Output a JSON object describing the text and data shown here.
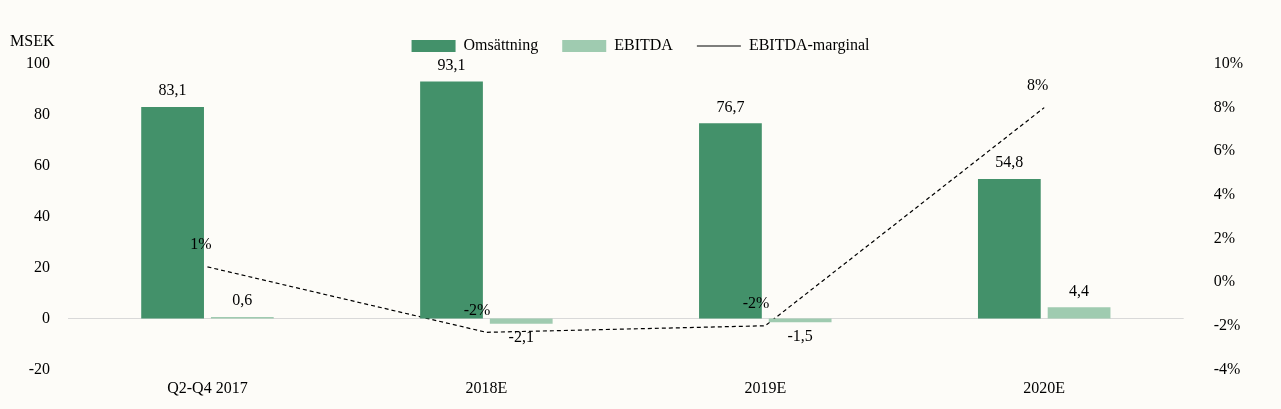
{
  "chart_data": {
    "type": "bar",
    "ylabel": "MSEK",
    "categories": [
      "Q2-Q4 2017",
      "2018E",
      "2019E",
      "2020E"
    ],
    "series": [
      {
        "name": "Omsättning",
        "color": "#43916a",
        "values": [
          83.1,
          93.1,
          76.7,
          54.8
        ],
        "value_labels": [
          "83,1",
          "93,1",
          "76,7",
          "54,8"
        ]
      },
      {
        "name": "EBITDA",
        "color": "#9fcbb0",
        "values": [
          0.6,
          -2.1,
          -1.5,
          4.4
        ],
        "value_labels": [
          "0,6",
          "-2,1",
          "-1,5",
          "4,4"
        ]
      },
      {
        "name": "EBITDA-marginal",
        "type": "line",
        "axis": "y2",
        "color": "#000000",
        "line_style": "dashed",
        "marker": "none",
        "values": [
          0.7,
          -2.3,
          -2.0,
          8.0
        ],
        "value_labels": [
          "1%",
          "-2%",
          "-2%",
          "8%"
        ]
      }
    ],
    "ylim": [
      -20,
      100
    ],
    "yticks": [
      -20,
      0,
      20,
      40,
      60,
      80,
      100
    ],
    "y2lim": [
      -4,
      10
    ],
    "y2ticks": [
      {
        "value": -4,
        "label": "-4%"
      },
      {
        "value": -2,
        "label": "-2%"
      },
      {
        "value": 0,
        "label": "0%"
      },
      {
        "value": 2,
        "label": "2%"
      },
      {
        "value": 4,
        "label": "4%"
      },
      {
        "value": 6,
        "label": "6%"
      },
      {
        "value": 8,
        "label": "8%"
      },
      {
        "value": 10,
        "label": "10%"
      }
    ],
    "ref_lines": [
      {
        "axis": "y",
        "value": 0,
        "color": "#d9d9d9"
      }
    ],
    "grid": false,
    "legend": "top"
  }
}
